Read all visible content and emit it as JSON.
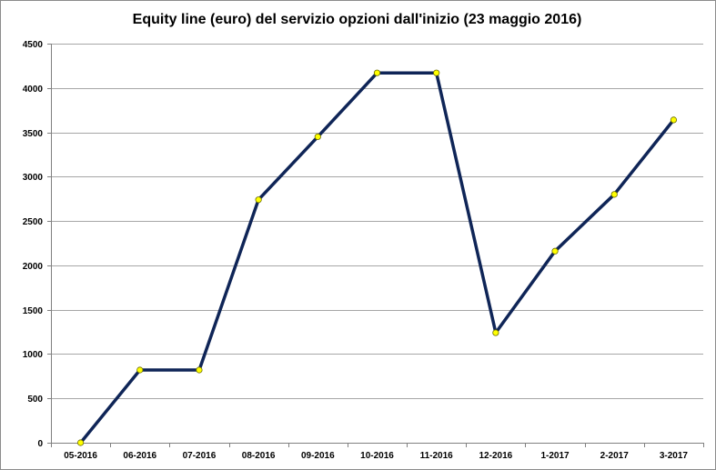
{
  "chart_data": {
    "type": "line",
    "title": "Equity line (euro) del servizio opzioni dall'inizio (23 maggio 2016)",
    "xlabel": "",
    "ylabel": "",
    "categories": [
      "05-2016",
      "06-2016",
      "07-2016",
      "08-2016",
      "09-2016",
      "10-2016",
      "11-2016",
      "12-2016",
      "1-2017",
      "2-2017",
      "3-2017"
    ],
    "series": [
      {
        "values": [
          0,
          820,
          820,
          2740,
          3450,
          4170,
          4170,
          1240,
          2160,
          2800,
          3640
        ]
      }
    ],
    "ylim": [
      0,
      4500
    ],
    "yticks": [
      0,
      500,
      1000,
      1500,
      2000,
      2500,
      3000,
      3500,
      4000,
      4500
    ],
    "grid": true,
    "legend": "none",
    "colors": {
      "line": "#0f2557",
      "marker_fill": "#ffff00",
      "marker_stroke": "#6b6b00",
      "grid": "#a6a6a6",
      "axis": "#808080"
    }
  }
}
